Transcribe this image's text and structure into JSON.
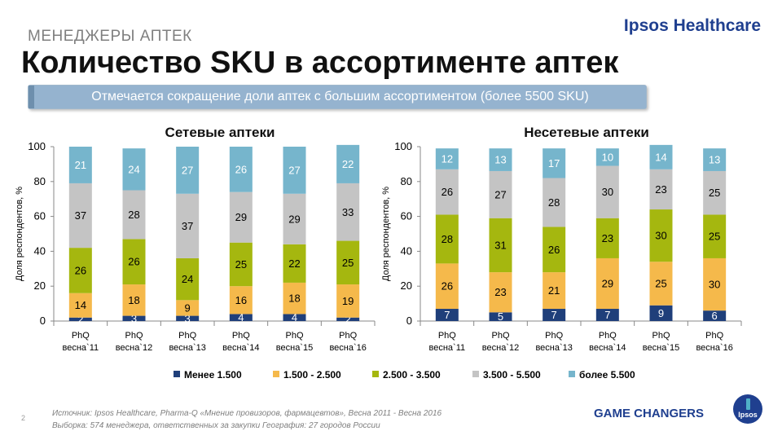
{
  "header": {
    "brand": "Ipsos Healthcare",
    "section": "МЕНЕДЖЕРЫ АПТЕК",
    "title": "Количество SKU в ассортименте аптек",
    "callout": "Отмечается сокращение доли аптек с большим ассортиментом (более 5500 SKU)"
  },
  "chart_data": [
    {
      "type": "bar",
      "stacked": true,
      "title": "Сетевые аптеки",
      "ylabel": "Доля респондентов, %",
      "xlabel": "",
      "ylim": [
        0,
        100
      ],
      "yticks": [
        0,
        20,
        40,
        60,
        80,
        100
      ],
      "categories": [
        "PhQ весна`11",
        "PhQ весна`12",
        "PhQ весна`13",
        "PhQ весна`14",
        "PhQ весна`15",
        "PhQ весна`16"
      ],
      "grid": false,
      "series": [
        {
          "name": "Менее 1.500",
          "values": [
            2,
            3,
            3,
            4,
            4,
            2
          ]
        },
        {
          "name": "1.500 - 2.500",
          "values": [
            14,
            18,
            9,
            16,
            18,
            19
          ]
        },
        {
          "name": "2.500 - 3.500",
          "values": [
            26,
            26,
            24,
            25,
            22,
            25
          ]
        },
        {
          "name": "3.500 - 5.500",
          "values": [
            37,
            28,
            37,
            29,
            29,
            33
          ]
        },
        {
          "name": "более 5.500",
          "values": [
            21,
            24,
            27,
            26,
            27,
            22
          ]
        }
      ]
    },
    {
      "type": "bar",
      "stacked": true,
      "title": "Несетевые аптеки",
      "ylabel": "Доля респондентов, %",
      "xlabel": "",
      "ylim": [
        0,
        100
      ],
      "yticks": [
        0,
        20,
        40,
        60,
        80,
        100
      ],
      "categories": [
        "PhQ весна`11",
        "PhQ весна`12",
        "PhQ весна`13",
        "PhQ весна`14",
        "PhQ весна`15",
        "PhQ весна`16"
      ],
      "grid": false,
      "series": [
        {
          "name": "Менее 1.500",
          "values": [
            7,
            5,
            7,
            7,
            9,
            6
          ]
        },
        {
          "name": "1.500 - 2.500",
          "values": [
            26,
            23,
            21,
            29,
            25,
            30
          ]
        },
        {
          "name": "2.500 - 3.500",
          "values": [
            28,
            31,
            26,
            23,
            30,
            25
          ]
        },
        {
          "name": "3.500 - 5.500",
          "values": [
            26,
            27,
            28,
            30,
            23,
            25
          ]
        },
        {
          "name": "более 5.500",
          "values": [
            12,
            13,
            17,
            10,
            14,
            13
          ]
        }
      ]
    }
  ],
  "legend": {
    "placement": "bottom-center",
    "items": [
      "Менее 1.500",
      "1.500 - 2.500",
      "2.500 - 3.500",
      "3.500 - 5.500",
      "более 5.500"
    ]
  },
  "colors": {
    "series": [
      "#1f3f7a",
      "#f5b94b",
      "#a5b70f",
      "#c4c4c4",
      "#76b5cc"
    ],
    "label_light": "#ffffff",
    "label_dark": "#000000",
    "brand": "#1f3f8f"
  },
  "footer": {
    "page_number": "2",
    "source": "Источник: Ipsos Healthcare, Pharma-Q «Мнение провизоров, фармацевтов», Весна 2011 - Весна 2016",
    "sample": "Выборка: 574 менеджера, ответственных за закупки География: 27 городов России",
    "tagline": "GAME CHANGERS",
    "logo_text": "Ipsos"
  }
}
